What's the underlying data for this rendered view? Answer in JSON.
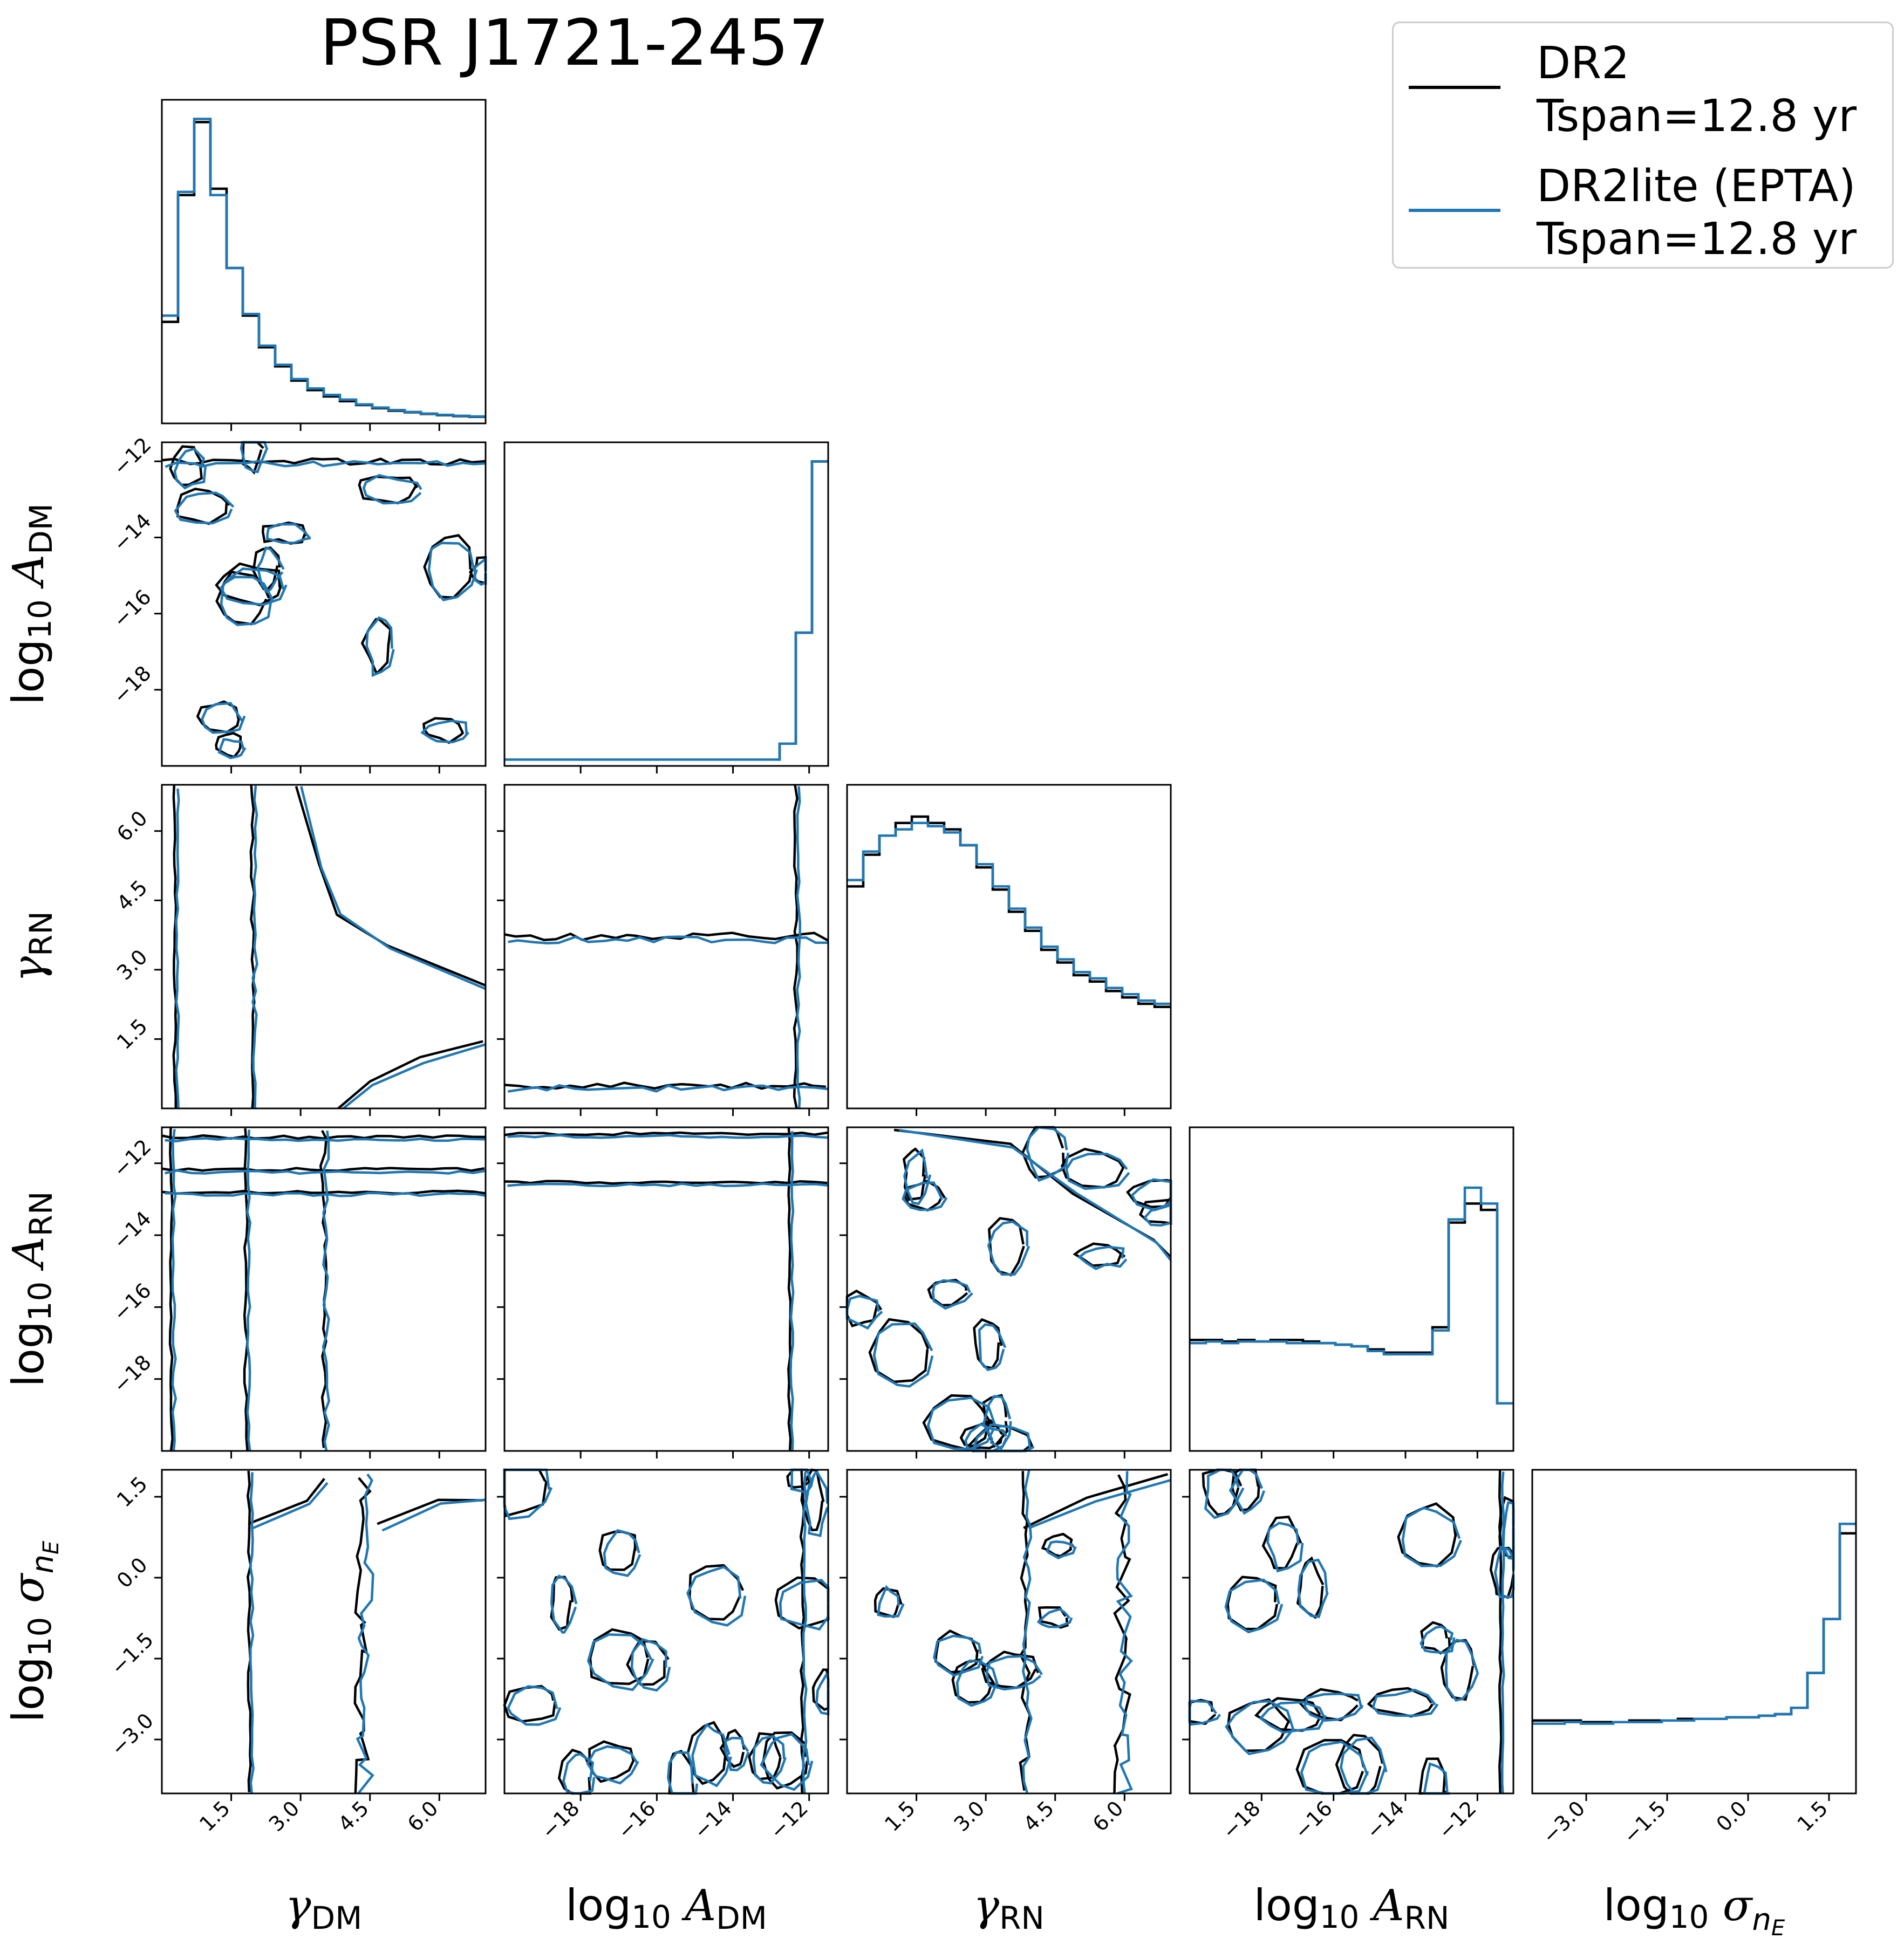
{
  "title": "PSR J1721-2457",
  "legend": {
    "entries": [
      {
        "line1": "DR2",
        "line2": "Tspan=12.8 yr",
        "color": "#000000"
      },
      {
        "line1": "DR2lite (EPTA)",
        "line2": "Tspan=12.8 yr",
        "color": "#1f77b4"
      }
    ]
  },
  "colors": {
    "dr2": "#000000",
    "dr2lite": "#1f77b4"
  },
  "chart_data": {
    "type": "corner",
    "parameters": [
      {
        "label": "γ_DM",
        "range": [
          0,
          7
        ],
        "ticks": [
          1.5,
          3.0,
          4.5,
          6.0
        ],
        "tick_labels": [
          "1.5",
          "3.0",
          "4.5",
          "6.0"
        ]
      },
      {
        "label": "log10 A_DM",
        "range": [
          -20,
          -11.5
        ],
        "ticks": [
          -18,
          -16,
          -14,
          -12
        ],
        "tick_labels": [
          "−18",
          "−16",
          "−14",
          "−12"
        ]
      },
      {
        "label": "γ_RN",
        "range": [
          0,
          7
        ],
        "ticks": [
          1.5,
          3.0,
          4.5,
          6.0
        ],
        "tick_labels": [
          "1.5",
          "3.0",
          "4.5",
          "6.0"
        ]
      },
      {
        "label": "log10 A_RN",
        "range": [
          -20,
          -11
        ],
        "ticks": [
          -18,
          -16,
          -14,
          -12
        ],
        "tick_labels": [
          "−18",
          "−16",
          "−14",
          "−12"
        ]
      },
      {
        "label": "log10 σ_nE",
        "range": [
          -4,
          2
        ],
        "ticks": [
          -3.0,
          -1.5,
          0.0,
          1.5
        ],
        "tick_labels": [
          "−3.0",
          "−1.5",
          "0.0",
          "1.5"
        ]
      }
    ],
    "diagonal": [
      {
        "bins": 20,
        "series": [
          {
            "name": "DR2",
            "values": [
              0.32,
              0.72,
              0.95,
              0.74,
              0.49,
              0.34,
              0.24,
              0.18,
              0.135,
              0.105,
              0.085,
              0.07,
              0.058,
              0.048,
              0.04,
              0.035,
              0.03,
              0.026,
              0.023,
              0.021
            ]
          },
          {
            "name": "DR2lite (EPTA)",
            "values": [
              0.34,
              0.73,
              0.96,
              0.72,
              0.49,
              0.345,
              0.245,
              0.185,
              0.14,
              0.11,
              0.09,
              0.075,
              0.06,
              0.05,
              0.042,
              0.036,
              0.031,
              0.027,
              0.024,
              0.022
            ]
          }
        ]
      },
      {
        "bins": 20,
        "series": [
          {
            "name": "DR2",
            "values": [
              0.02,
              0.02,
              0.02,
              0.02,
              0.02,
              0.02,
              0.02,
              0.02,
              0.02,
              0.02,
              0.02,
              0.02,
              0.02,
              0.02,
              0.02,
              0.02,
              0.02,
              0.07,
              0.42,
              0.96
            ]
          },
          {
            "name": "DR2lite (EPTA)",
            "values": [
              0.02,
              0.02,
              0.02,
              0.02,
              0.02,
              0.02,
              0.02,
              0.02,
              0.02,
              0.02,
              0.02,
              0.02,
              0.02,
              0.02,
              0.02,
              0.02,
              0.02,
              0.07,
              0.42,
              0.96
            ]
          }
        ]
      },
      {
        "bins": 20,
        "series": [
          {
            "name": "DR2",
            "values": [
              0.7,
              0.8,
              0.86,
              0.9,
              0.92,
              0.9,
              0.88,
              0.83,
              0.76,
              0.69,
              0.62,
              0.56,
              0.5,
              0.46,
              0.42,
              0.4,
              0.37,
              0.35,
              0.33,
              0.32
            ]
          },
          {
            "name": "DR2lite (EPTA)",
            "values": [
              0.72,
              0.81,
              0.86,
              0.88,
              0.9,
              0.89,
              0.87,
              0.83,
              0.77,
              0.7,
              0.63,
              0.57,
              0.51,
              0.47,
              0.43,
              0.41,
              0.38,
              0.36,
              0.34,
              0.33
            ]
          }
        ]
      },
      {
        "bins": 20,
        "series": [
          {
            "name": "DR2",
            "values": [
              0.35,
              0.35,
              0.345,
              0.35,
              0.345,
              0.35,
              0.35,
              0.345,
              0.34,
              0.335,
              0.33,
              0.32,
              0.31,
              0.31,
              0.31,
              0.39,
              0.72,
              0.78,
              0.76,
              0.15
            ]
          },
          {
            "name": "DR2lite (EPTA)",
            "values": [
              0.34,
              0.345,
              0.34,
              0.345,
              0.345,
              0.345,
              0.34,
              0.34,
              0.34,
              0.335,
              0.33,
              0.315,
              0.305,
              0.305,
              0.305,
              0.38,
              0.73,
              0.83,
              0.78,
              0.15
            ]
          }
        ]
      },
      {
        "bins": 20,
        "series": [
          {
            "name": "DR2",
            "values": [
              0.23,
              0.23,
              0.23,
              0.225,
              0.225,
              0.225,
              0.23,
              0.23,
              0.23,
              0.235,
              0.235,
              0.235,
              0.24,
              0.24,
              0.245,
              0.25,
              0.27,
              0.38,
              0.55,
              0.82
            ]
          },
          {
            "name": "DR2lite (EPTA)",
            "values": [
              0.22,
              0.22,
              0.225,
              0.22,
              0.22,
              0.225,
              0.225,
              0.225,
              0.23,
              0.23,
              0.235,
              0.235,
              0.24,
              0.24,
              0.245,
              0.25,
              0.27,
              0.38,
              0.55,
              0.85
            ]
          }
        ]
      }
    ]
  }
}
